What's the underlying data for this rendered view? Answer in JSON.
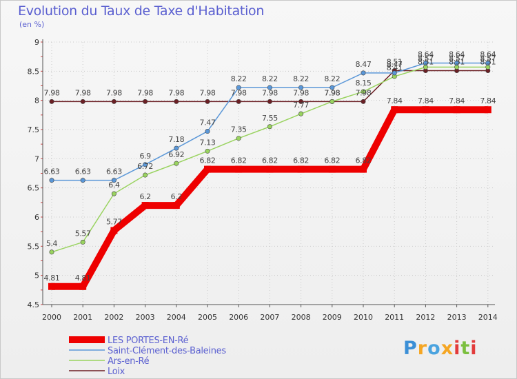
{
  "chart_data": {
    "type": "line",
    "title": "Evolution du Taux de Taxe d'Habitation",
    "unit_label": "(en %)",
    "xlabel": "",
    "ylabel": "",
    "ylim": [
      4.5,
      9
    ],
    "y_ticks": [
      "4.5",
      "5",
      "5.5",
      "6",
      "6.5",
      "7",
      "7.5",
      "8",
      "8.5",
      "9"
    ],
    "x": [
      "2000",
      "2001",
      "2002",
      "2003",
      "2004",
      "2005",
      "2006",
      "2007",
      "2008",
      "2009",
      "2010",
      "2011",
      "2012",
      "2013",
      "2014"
    ],
    "grid": true,
    "legend_position": "bottom-left",
    "series": [
      {
        "name": "Loix",
        "color": "#6b1f24",
        "values": [
          7.98,
          7.98,
          7.98,
          7.98,
          7.98,
          7.98,
          7.98,
          7.98,
          7.98,
          7.98,
          7.98,
          8.51,
          8.51,
          8.51,
          8.51
        ],
        "labels": [
          "7.98",
          "7.98",
          "7.98",
          "7.98",
          "7.98",
          "7.98",
          "7.98",
          "7.98",
          "7.98",
          "7.98",
          "7.98",
          "8.51",
          "8.51",
          "8.51",
          "8.51"
        ]
      },
      {
        "name": "Ars-en-Ré",
        "color": "#99d35f",
        "values": [
          5.4,
          5.57,
          6.4,
          6.72,
          6.92,
          7.13,
          7.35,
          7.55,
          7.77,
          7.98,
          8.15,
          8.41,
          8.57,
          8.57,
          8.57
        ],
        "labels": [
          "5.4",
          "5.57",
          "6.4",
          "6.72",
          "6.92",
          "7.13",
          "7.35",
          "7.55",
          "7.77",
          "7.98",
          "8.15",
          "8.41",
          "8.57",
          "8.57",
          "8.57"
        ]
      },
      {
        "name": "Saint-Clément-des-Baleines",
        "color": "#5a97d8",
        "values": [
          6.63,
          6.63,
          6.63,
          6.9,
          7.18,
          7.47,
          8.22,
          8.22,
          8.22,
          8.22,
          8.47,
          8.47,
          8.64,
          8.64,
          8.64
        ],
        "labels": [
          "6.63",
          "6.63",
          "6.63",
          "6.9",
          "7.18",
          "7.47",
          "8.22",
          "8.22",
          "8.22",
          "8.22",
          "8.47",
          "8.47",
          "8.64",
          "8.64",
          "8.64"
        ]
      },
      {
        "name": "LES PORTES-EN-Ré",
        "color": "#ee0000",
        "values": [
          4.81,
          4.81,
          5.77,
          6.2,
          6.2,
          6.82,
          6.82,
          6.82,
          6.82,
          6.82,
          6.82,
          7.84,
          7.84,
          7.84,
          7.84
        ],
        "labels": [
          "4.81",
          "4.81",
          "5.77",
          "6.2",
          "6.2",
          "6.82",
          "6.82",
          "6.82",
          "6.82",
          "6.82",
          "6.82",
          "7.84",
          "7.84",
          "7.84",
          "7.84"
        ]
      }
    ]
  },
  "legend": {
    "items": [
      {
        "name": "LES PORTES-EN-Ré",
        "color": "#ee0000"
      },
      {
        "name": "Saint-Clément-des-Baleines",
        "color": "#5a97d8"
      },
      {
        "name": "Ars-en-Ré",
        "color": "#99d35f"
      },
      {
        "name": "Loix",
        "color": "#6b1f24"
      }
    ]
  },
  "brand": {
    "logo_text": "Proxiti",
    "letter_colors": [
      "#3b8fd6",
      "#f5a623",
      "#4aa3df",
      "#f5a623",
      "#e23b3b",
      "#7bbf3f",
      "#e23b3b"
    ]
  }
}
